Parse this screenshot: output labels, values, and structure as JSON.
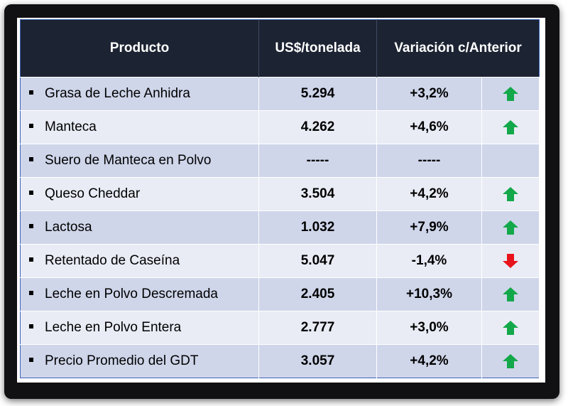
{
  "table": {
    "headers": {
      "product": "Producto",
      "price": "US$/tonelada",
      "variation": "Variación c/Anterior"
    },
    "rows": [
      {
        "product": "Grasa de Leche Anhidra",
        "price": "5.294",
        "variation": "+3,2%",
        "trend": "up"
      },
      {
        "product": "Manteca",
        "price": "4.262",
        "variation": "+4,6%",
        "trend": "up"
      },
      {
        "product": "Suero de Manteca en Polvo",
        "price": "-----",
        "variation": "-----",
        "trend": "none"
      },
      {
        "product": "Queso Cheddar",
        "price": "3.504",
        "variation": "+4,2%",
        "trend": "up"
      },
      {
        "product": "Lactosa",
        "price": "1.032",
        "variation": "+7,9%",
        "trend": "up"
      },
      {
        "product": "Retentado de Caseína",
        "price": "5.047",
        "variation": "-1,4%",
        "trend": "down"
      },
      {
        "product": "Leche en Polvo Descremada",
        "price": "2.405",
        "variation": "+10,3%",
        "trend": "up"
      },
      {
        "product": "Leche en Polvo Entera",
        "price": "2.777",
        "variation": "+3,0%",
        "trend": "up"
      },
      {
        "product": "Precio Promedio del GDT",
        "price": "3.057",
        "variation": "+4,2%",
        "trend": "up"
      }
    ]
  },
  "colors": {
    "header_bg": "#1c2332",
    "row_odd": "#cfd6ea",
    "row_even": "#e9ecf5",
    "arrow_up": "#13a84a",
    "arrow_down": "#e8141c"
  }
}
